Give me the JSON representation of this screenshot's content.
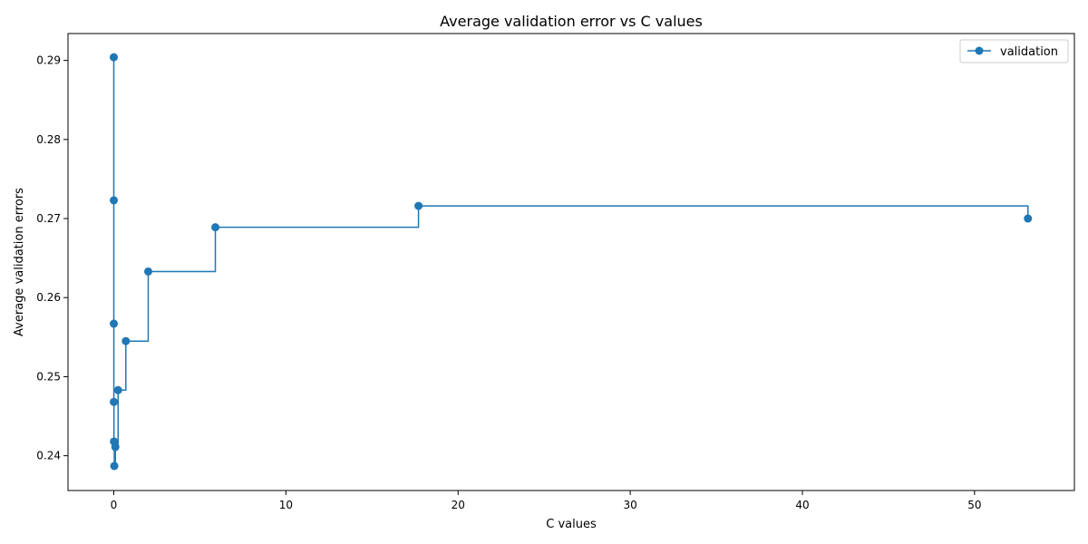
{
  "chart_data": {
    "type": "line",
    "title": "Average validation error vs C values",
    "xlabel": "C values",
    "ylabel": "Average validation errors",
    "xlim": [
      -2.66,
      55.8
    ],
    "ylim": [
      0.2356,
      0.2934
    ],
    "xticks": [
      0,
      10,
      20,
      30,
      40,
      50
    ],
    "xtick_labels": [
      "0",
      "10",
      "20",
      "30",
      "40",
      "50"
    ],
    "yticks": [
      0.24,
      0.25,
      0.26,
      0.27,
      0.28,
      0.29
    ],
    "ytick_labels": [
      "0.24",
      "0.25",
      "0.26",
      "0.27",
      "0.28",
      "0.29"
    ],
    "grid": false,
    "legend_position": "top-right",
    "drawstyle": "steps-post",
    "series": [
      {
        "name": "validation",
        "color": "#1f77b4",
        "marker": "circle",
        "x": [
          0.0001,
          0.0003,
          0.001,
          0.003,
          0.01,
          0.03,
          0.09,
          0.25,
          0.7,
          2.0,
          5.9,
          17.7,
          53.1
        ],
        "y": [
          0.2904,
          0.2723,
          0.2567,
          0.2468,
          0.2418,
          0.2387,
          0.2411,
          0.2483,
          0.2545,
          0.2633,
          0.2689,
          0.2716,
          0.27
        ]
      }
    ]
  }
}
